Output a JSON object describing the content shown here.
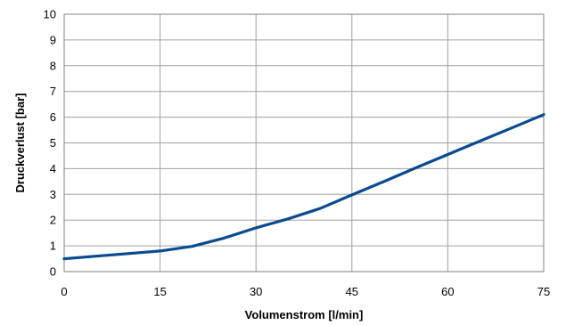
{
  "chart_data": {
    "type": "line",
    "title": "",
    "xlabel": "Volumenstrom [l/min]",
    "ylabel": "Druckverlust [bar]",
    "xlim": [
      0,
      75
    ],
    "ylim": [
      0,
      10
    ],
    "x_ticks": [
      "0",
      "15",
      "30",
      "45",
      "60",
      "75"
    ],
    "y_ticks": [
      "0",
      "1",
      "2",
      "3",
      "4",
      "5",
      "6",
      "7",
      "8",
      "9",
      "10"
    ],
    "grid": true,
    "legend": "none",
    "series": [
      {
        "color": "#0a4a8f",
        "x": [
          0,
          5,
          10,
          15,
          20,
          25,
          30,
          35,
          40,
          45,
          50,
          55,
          60,
          65,
          70,
          75
        ],
        "y": [
          0.5,
          0.6,
          0.7,
          0.8,
          0.98,
          1.3,
          1.7,
          2.05,
          2.45,
          2.98,
          3.5,
          4.03,
          4.55,
          5.07,
          5.58,
          6.1
        ]
      }
    ]
  }
}
